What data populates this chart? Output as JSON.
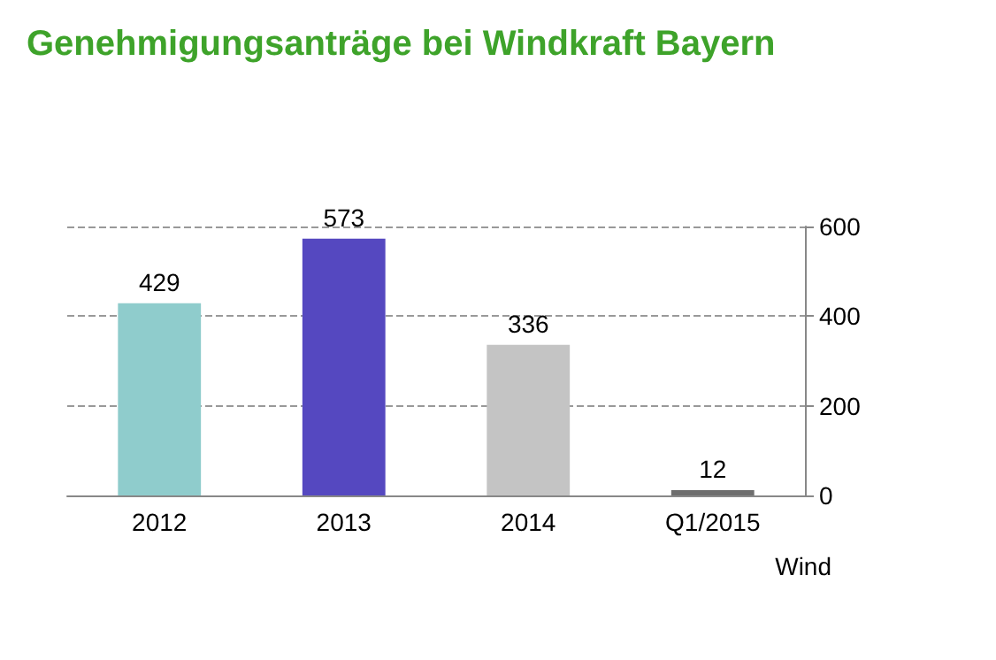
{
  "chart_data": {
    "type": "bar",
    "title": "Genehmigungsanträge bei Windkraft Bayern",
    "categories": [
      "2012",
      "2013",
      "2014",
      "Q1/2015"
    ],
    "values": [
      429,
      573,
      336,
      12
    ],
    "colors": [
      "#8fcccc",
      "#5548c0",
      "#c4c4c4",
      "#6e6e6e"
    ],
    "ylim": [
      0,
      600
    ],
    "yticks": [
      0,
      200,
      400,
      600
    ],
    "grid": "y",
    "data_labels": true,
    "annotations": [
      "Wind"
    ]
  }
}
